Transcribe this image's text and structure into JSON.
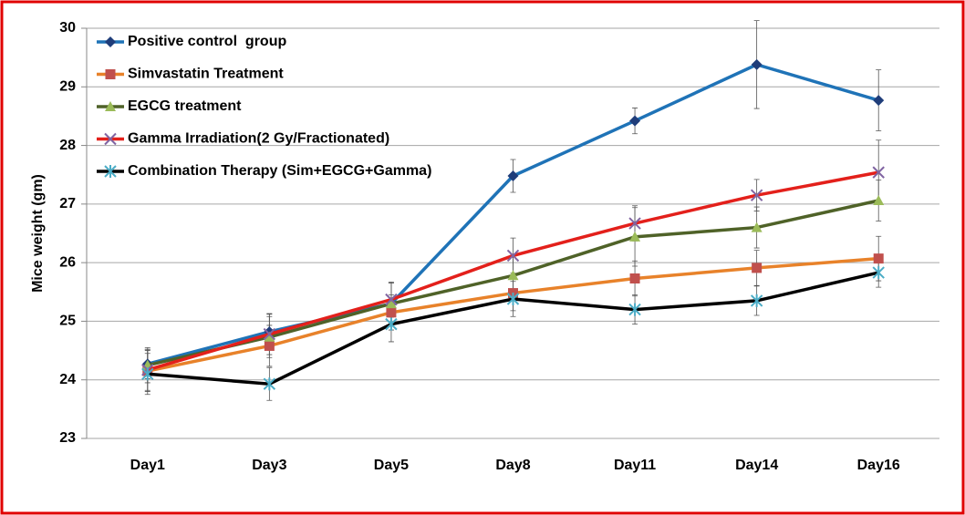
{
  "chart_data": {
    "type": "line",
    "ylabel": "Mice weight (gm)",
    "categories": [
      "Day1",
      "Day3",
      "Day5",
      "Day8",
      "Day11",
      "Day14",
      "Day16"
    ],
    "ylim": [
      23,
      30
    ],
    "yticks": [
      23,
      24,
      25,
      26,
      27,
      28,
      29,
      30
    ],
    "legend": "upper left",
    "series": [
      {
        "name": "Positive control  group",
        "color": "#1f73b7",
        "marker_color": "#1f3d7a",
        "marker": "diamond",
        "values": [
          24.27,
          24.82,
          25.3,
          27.48,
          28.42,
          29.38,
          28.77
        ],
        "errors": [
          0.25,
          0.3,
          0.35,
          0.28,
          0.22,
          0.75,
          0.52
        ]
      },
      {
        "name": "Simvastatin Treatment",
        "color": "#e8822a",
        "marker_color": "#c0504d",
        "marker": "square",
        "values": [
          24.15,
          24.58,
          25.15,
          25.48,
          25.73,
          25.91,
          26.07
        ],
        "errors": [
          0.35,
          0.35,
          0.3,
          0.3,
          0.3,
          0.3,
          0.38
        ]
      },
      {
        "name": "EGCG treatment",
        "color": "#4f6228",
        "marker_color": "#9bbb59",
        "marker": "triangle",
        "values": [
          24.25,
          24.73,
          25.3,
          25.78,
          26.44,
          26.6,
          27.06
        ],
        "errors": [
          0.3,
          0.35,
          0.35,
          0.35,
          0.5,
          0.35,
          0.35
        ]
      },
      {
        "name": "Gamma Irradiation(2 Gy/Fractionated)",
        "color": "#e3201b",
        "marker_color": "#8064a2",
        "marker": "x",
        "values": [
          24.17,
          24.78,
          25.37,
          26.12,
          26.67,
          27.15,
          27.54
        ],
        "errors": [
          0.35,
          0.35,
          0.3,
          0.3,
          0.3,
          0.27,
          0.55
        ]
      },
      {
        "name": "Combination Therapy (Sim+EGCG+Gamma)",
        "color": "#000000",
        "marker_color": "#4bacc6",
        "marker": "star",
        "values": [
          24.1,
          23.93,
          24.95,
          25.38,
          25.2,
          25.35,
          25.83
        ],
        "errors": [
          0.35,
          0.28,
          0.3,
          0.3,
          0.25,
          0.25,
          0.25
        ]
      }
    ]
  }
}
